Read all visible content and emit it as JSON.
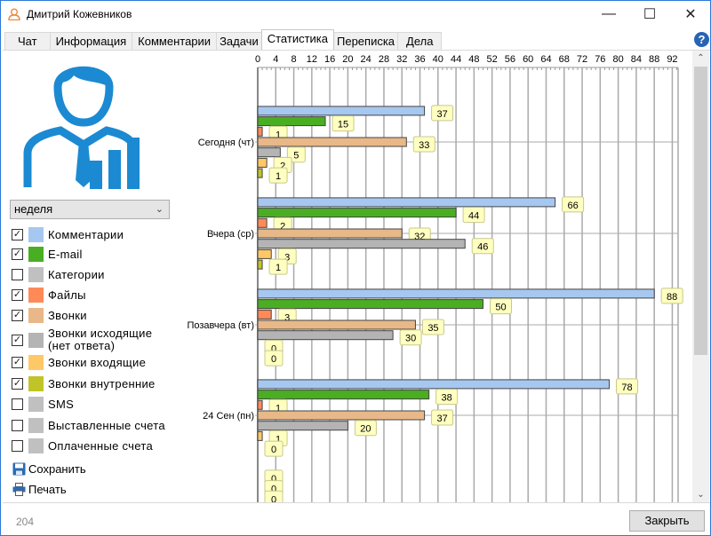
{
  "window": {
    "title": "Дмитрий Кожевников",
    "minimize": "—",
    "maximize": "☐",
    "close": "✕"
  },
  "tabs": [
    {
      "label": "Чат"
    },
    {
      "label": "Информация"
    },
    {
      "label": "Комментарии"
    },
    {
      "label": "Задачи"
    },
    {
      "label": "Статистика",
      "active": true
    },
    {
      "label": "Переписка"
    },
    {
      "label": "Дела"
    }
  ],
  "help": "?",
  "period": {
    "selected": "неделя"
  },
  "legend": [
    {
      "label": "Комментарии",
      "checked": true,
      "color": "#a6c8f0"
    },
    {
      "label": "E-mail",
      "checked": true,
      "color": "#4aae22"
    },
    {
      "label": "Категории",
      "checked": false,
      "color": "#c0c0c0"
    },
    {
      "label": "Файлы",
      "checked": true,
      "color": "#ff8a58"
    },
    {
      "label": "Звонки",
      "checked": true,
      "color": "#e8b888"
    },
    {
      "label": "Звонки исходящие (нет ответа)",
      "checked": true,
      "color": "#b4b4b4"
    },
    {
      "label": "Звонки входящие",
      "checked": true,
      "color": "#ffc866"
    },
    {
      "label": "Звонки внутренние",
      "checked": true,
      "color": "#c0c428"
    },
    {
      "label": "SMS",
      "checked": false,
      "color": "#c0c0c0"
    },
    {
      "label": "Выставленные счета",
      "checked": false,
      "color": "#c0c0c0"
    },
    {
      "label": "Оплаченные счета",
      "checked": false,
      "color": "#c0c0c0"
    }
  ],
  "actions": {
    "save": "Сохранить",
    "print": "Печать"
  },
  "footer": {
    "count": "204",
    "close_button": "Закрыть"
  },
  "chart_data": {
    "type": "bar",
    "orientation": "horizontal",
    "xlim": [
      0,
      92
    ],
    "x_ticks": [
      0,
      4,
      8,
      12,
      16,
      20,
      24,
      28,
      32,
      36,
      40,
      44,
      48,
      52,
      56,
      60,
      64,
      68,
      72,
      76,
      80,
      84,
      88,
      92
    ],
    "categories": [
      "Сегодня (чт)",
      "Вчера (ср)",
      "Позавчера (вт)",
      "24 Сен (пн)",
      ""
    ],
    "series": [
      {
        "name": "Комментарии",
        "color": "#a6c8f0",
        "values": [
          37,
          66,
          88,
          78,
          0
        ]
      },
      {
        "name": "E-mail",
        "color": "#4aae22",
        "values": [
          15,
          44,
          50,
          38,
          0
        ]
      },
      {
        "name": "Файлы",
        "color": "#ff8a58",
        "values": [
          1,
          2,
          3,
          1,
          0
        ]
      },
      {
        "name": "Звонки",
        "color": "#e8b888",
        "values": [
          33,
          32,
          35,
          37,
          null
        ]
      },
      {
        "name": "Звонки исходящие (нет ответа)",
        "color": "#b4b4b4",
        "values": [
          5,
          46,
          30,
          20,
          null
        ]
      },
      {
        "name": "Звонки входящие",
        "color": "#ffc866",
        "values": [
          2,
          3,
          0,
          1,
          null
        ]
      },
      {
        "name": "Звонки внутренние",
        "color": "#c0c428",
        "values": [
          1,
          1,
          0,
          0,
          null
        ]
      }
    ],
    "grid": true,
    "data_labels": true
  }
}
